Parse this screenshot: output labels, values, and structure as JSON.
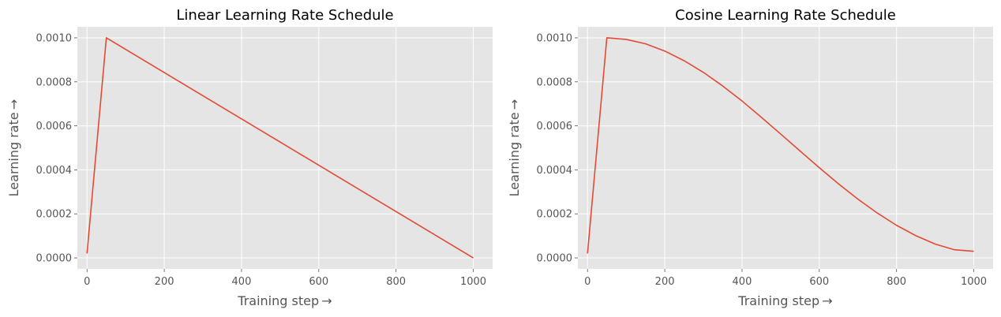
{
  "chart_data": [
    {
      "type": "line",
      "title": "Linear Learning Rate Schedule",
      "xlabel": "Training step →",
      "ylabel": "Learning rate →",
      "xlim": [
        -25,
        1050
      ],
      "ylim": [
        -5e-05,
        0.00105
      ],
      "xticks": [
        "0",
        "200",
        "400",
        "600",
        "800",
        "1000"
      ],
      "yticks": [
        "0.0000",
        "0.0002",
        "0.0004",
        "0.0006",
        "0.0008",
        "0.0010"
      ],
      "grid": true,
      "series": [
        {
          "color": "#E24A33",
          "x": [
            0,
            50,
            1000
          ],
          "y": [
            2e-05,
            0.001,
            0.0
          ]
        }
      ]
    },
    {
      "type": "line",
      "title": "Cosine Learning Rate Schedule",
      "xlabel": "Training step →",
      "ylabel": "Learning rate →",
      "xlim": [
        -25,
        1050
      ],
      "ylim": [
        -5e-05,
        0.00105
      ],
      "xticks": [
        "0",
        "200",
        "400",
        "600",
        "800",
        "1000"
      ],
      "yticks": [
        "0.0000",
        "0.0002",
        "0.0004",
        "0.0006",
        "0.0008",
        "0.0010"
      ],
      "grid": true,
      "series": [
        {
          "color": "#E24A33",
          "x": [
            0,
            50,
            100,
            150,
            200,
            250,
            300,
            350,
            400,
            450,
            500,
            550,
            600,
            650,
            700,
            750,
            800,
            850,
            900,
            950,
            1000
          ],
          "y": [
            2e-05,
            0.001,
            0.000993,
            0.000973,
            0.00094,
            0.000896,
            0.000843,
            0.000781,
            0.000713,
            0.000639,
            0.000563,
            0.000486,
            0.00041,
            0.000336,
            0.000267,
            0.000204,
            0.000148,
            0.000101,
            6.3e-05,
            3.7e-05,
            3e-05
          ]
        }
      ]
    }
  ]
}
